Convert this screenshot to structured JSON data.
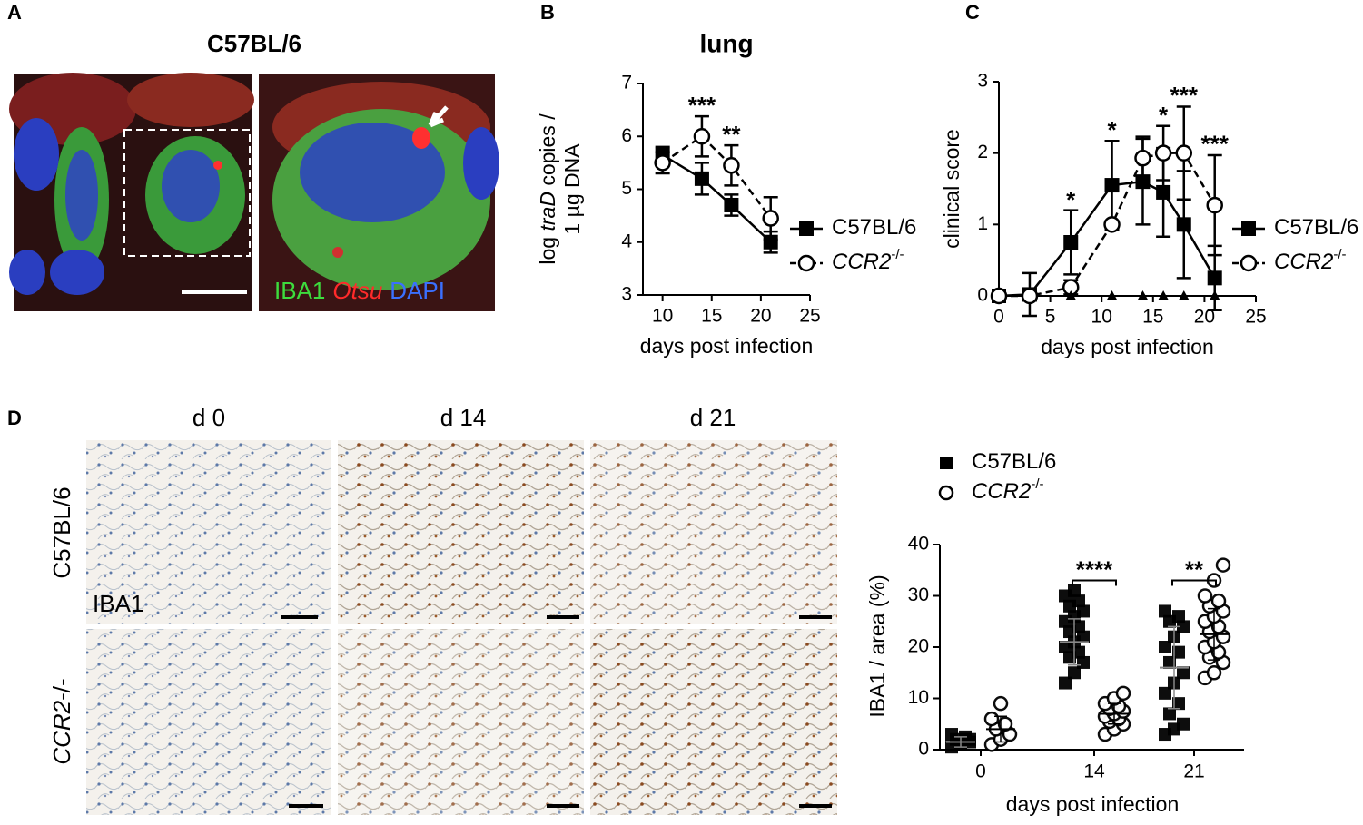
{
  "panels": {
    "letters": [
      "A",
      "B",
      "C",
      "D"
    ],
    "A": {
      "title": "C57BL/6",
      "stains": [
        "IBA1",
        "Otsu",
        "DAPI"
      ]
    },
    "D_images": {
      "columns": [
        "d 0",
        "d 14",
        "d 21"
      ],
      "rows": [
        [
          "C57BL/6"
        ],
        [
          "CCR2",
          "-/-"
        ]
      ],
      "stain": "IBA1"
    }
  },
  "chart_data": [
    {
      "type": "line",
      "title": "lung",
      "ylabel": [
        [
          "log ",
          "traD",
          " copies /"
        ],
        [
          "1 µg DNA"
        ]
      ],
      "xlabel": "days post infection",
      "xlim": [
        8,
        25
      ],
      "xticks": [
        10,
        15,
        20,
        25
      ],
      "ylim": [
        3,
        7
      ],
      "yticks": [
        3,
        4,
        5,
        6,
        7
      ],
      "series": [
        {
          "name": "C57BL/6",
          "color": "#000000",
          "marker": "square",
          "dashed": false,
          "x": [
            10,
            14,
            17,
            21
          ],
          "values": [
            5.65,
            5.2,
            4.7,
            4.0
          ],
          "err": [
            0.15,
            0.3,
            0.2,
            0.2
          ]
        },
        {
          "name": "CCR2",
          "sup": "-/-",
          "color": "#000000",
          "marker": "circle",
          "dashed": true,
          "x": [
            10,
            14,
            17,
            21
          ],
          "values": [
            5.5,
            6.0,
            5.45,
            4.45
          ],
          "err": [
            0.2,
            0.38,
            0.38,
            0.4
          ]
        }
      ],
      "annotations": [
        {
          "x": 14,
          "y": 6.55,
          "text": "***"
        },
        {
          "x": 17,
          "y": 6.0,
          "text": "**"
        }
      ]
    },
    {
      "type": "line",
      "ylabel": [
        [
          "clinical score"
        ]
      ],
      "xlabel": "days post infection",
      "xlim": [
        0,
        25
      ],
      "xticks": [
        0,
        5,
        10,
        15,
        20,
        25
      ],
      "ylim": [
        0,
        3
      ],
      "yticks": [
        0,
        1,
        2,
        3
      ],
      "series": [
        {
          "name": "C57BL/6",
          "color": "#000000",
          "marker": "square",
          "dashed": false,
          "x": [
            0,
            3,
            7,
            11,
            14,
            16,
            18,
            21
          ],
          "values": [
            0,
            0.02,
            0.75,
            1.55,
            1.6,
            1.45,
            1.0,
            0.25
          ],
          "err": [
            0,
            0.3,
            0.45,
            0.62,
            0.6,
            0.62,
            0.75,
            0.45
          ]
        },
        {
          "name": "CCR2",
          "sup": "-/-",
          "color": "#000000",
          "marker": "circle",
          "dashed": true,
          "x": [
            0,
            3,
            7,
            11,
            14,
            16,
            18,
            21
          ],
          "values": [
            0,
            0,
            0.12,
            1.0,
            1.93,
            2.0,
            2.0,
            1.27
          ],
          "err": [
            0,
            0,
            0.1,
            0.05,
            0.3,
            0.38,
            0.65,
            0.7
          ]
        }
      ],
      "triangles": {
        "x": [
          7,
          11,
          14,
          16,
          18,
          21
        ],
        "values": [
          0,
          0,
          0,
          0,
          0,
          0
        ]
      },
      "annotations": [
        {
          "x": 7,
          "y": 1.32,
          "text": "*"
        },
        {
          "x": 11,
          "y": 2.3,
          "text": "*"
        },
        {
          "x": 16,
          "y": 2.5,
          "text": "*"
        },
        {
          "x": 18,
          "y": 2.78,
          "text": "***"
        },
        {
          "x": 21,
          "y": 2.1,
          "text": "***"
        }
      ]
    },
    {
      "type": "dot",
      "ylabel": "IBA1 / area (%)",
      "xlabel": "days post infection",
      "categories": [
        "0",
        "14",
        "21"
      ],
      "ylim": [
        0,
        40
      ],
      "yticks": [
        0,
        10,
        20,
        30,
        40
      ],
      "series": [
        {
          "name": "C57BL/6",
          "color": "#000000",
          "marker": "square",
          "groups": [
            [
              0.5,
              1,
              1.5,
              2,
              2.5,
              3,
              1,
              2
            ],
            [
              13,
              15,
              17,
              18,
              19,
              20,
              21,
              22,
              23,
              24,
              25,
              26,
              27,
              28,
              29,
              30,
              31
            ],
            [
              3,
              4,
              5,
              7,
              9,
              11,
              13,
              15,
              17,
              19,
              20,
              22,
              24,
              25,
              26,
              27
            ]
          ],
          "means": [
            1.5,
            21,
            16
          ],
          "sd": [
            1,
            4.5,
            8
          ]
        },
        {
          "name": "CCR2",
          "sup": "-/-",
          "color": "#000000",
          "marker": "circle",
          "groups": [
            [
              1,
              2,
              3,
              4,
              5,
              6,
              9
            ],
            [
              3,
              4,
              5,
              5.5,
              6,
              6.5,
              7,
              7.5,
              8,
              8.5,
              9,
              10,
              11
            ],
            [
              14,
              15,
              17,
              18,
              19,
              20,
              21,
              22,
              23,
              24,
              25,
              26,
              27,
              28,
              29,
              30,
              33,
              36
            ]
          ],
          "means": [
            4,
            7,
            22.5
          ],
          "sd": [
            2.5,
            2,
            5
          ]
        }
      ],
      "annotations": [
        {
          "category": 1,
          "y": 33,
          "text": "****"
        },
        {
          "category": 2,
          "y": 33,
          "text": "**"
        }
      ]
    }
  ]
}
